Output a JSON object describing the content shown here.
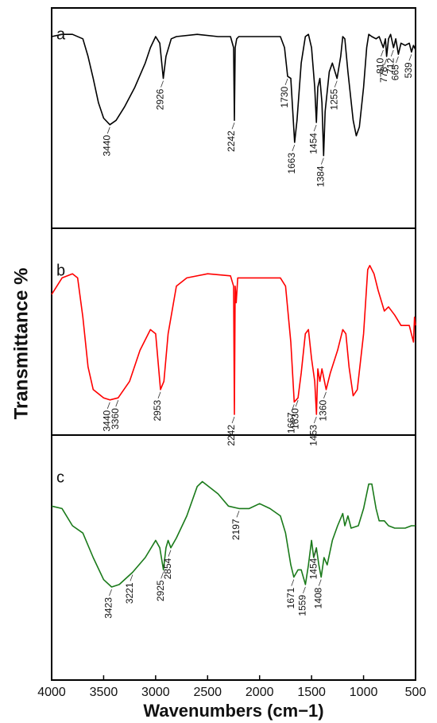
{
  "chart_data": {
    "type": "line",
    "xlabel": "Wavenumbers (cm−1)",
    "ylabel": "Transmittance %",
    "xlim": [
      4000,
      500
    ],
    "xticks": [
      4000,
      3500,
      3000,
      2500,
      2000,
      1500,
      1000,
      500
    ],
    "ylim": [
      0,
      100
    ],
    "series": [
      {
        "name": "a",
        "color": "#000000",
        "x": [
          4000,
          3900,
          3800,
          3700,
          3650,
          3600,
          3550,
          3500,
          3440,
          3380,
          3300,
          3200,
          3100,
          3050,
          3000,
          2960,
          2926,
          2900,
          2850,
          2800,
          2600,
          2400,
          2280,
          2250,
          2242,
          2235,
          2220,
          2200,
          2000,
          1800,
          1760,
          1730,
          1700,
          1663,
          1640,
          1600,
          1560,
          1530,
          1500,
          1470,
          1454,
          1440,
          1420,
          1400,
          1384,
          1370,
          1330,
          1300,
          1255,
          1220,
          1200,
          1180,
          1150,
          1100,
          1070,
          1040,
          1000,
          970,
          950,
          920,
          880,
          850,
          810,
          790,
          778,
          760,
          740,
          712,
          690,
          665,
          640,
          600,
          560,
          539,
          520,
          500
        ],
        "values": [
          87,
          88,
          88,
          86,
          78,
          68,
          57,
          50,
          47,
          49,
          55,
          64,
          75,
          82,
          87,
          84,
          68,
          78,
          86,
          87,
          88,
          87,
          87,
          82,
          49,
          82,
          86,
          87,
          87,
          87,
          82,
          69,
          68,
          39,
          49,
          75,
          87,
          88,
          82,
          64,
          48,
          64,
          68,
          57,
          33,
          53,
          71,
          75,
          68,
          78,
          87,
          86,
          71,
          49,
          42,
          46,
          64,
          82,
          88,
          87,
          86,
          87,
          82,
          86,
          78,
          86,
          88,
          82,
          86,
          79,
          84,
          83,
          84,
          80,
          83,
          81
        ],
        "peaks": [
          3440,
          2926,
          2242,
          1730,
          1663,
          1454,
          1384,
          1255,
          810,
          778,
          712,
          665,
          539
        ]
      },
      {
        "name": "b",
        "color": "#ff0000",
        "x": [
          4000,
          3900,
          3800,
          3750,
          3700,
          3650,
          3600,
          3500,
          3440,
          3360,
          3250,
          3150,
          3050,
          3000,
          2953,
          2920,
          2880,
          2800,
          2700,
          2500,
          2280,
          2250,
          2242,
          2235,
          2225,
          2210,
          2000,
          1800,
          1750,
          1700,
          1667,
          1630,
          1600,
          1560,
          1530,
          1500,
          1470,
          1453,
          1440,
          1420,
          1400,
          1360,
          1320,
          1250,
          1200,
          1170,
          1140,
          1100,
          1060,
          1000,
          960,
          940,
          900,
          860,
          800,
          760,
          700,
          640,
          560,
          520,
          510,
          500
        ],
        "values": [
          68,
          76,
          78,
          76,
          57,
          33,
          22,
          18,
          17,
          18,
          26,
          41,
          51,
          49,
          22,
          26,
          49,
          72,
          76,
          78,
          77,
          72,
          10,
          72,
          64,
          76,
          76,
          76,
          72,
          45,
          16,
          18,
          30,
          49,
          51,
          37,
          26,
          10,
          32,
          26,
          32,
          22,
          30,
          41,
          51,
          49,
          33,
          19,
          22,
          49,
          80,
          82,
          78,
          70,
          60,
          62,
          58,
          53,
          53,
          45,
          57,
          53
        ],
        "peaks": [
          3440,
          3360,
          2953,
          2242,
          1667,
          1630,
          1453,
          1360
        ]
      },
      {
        "name": "c",
        "color": "#1a7a1a",
        "x": [
          4000,
          3900,
          3800,
          3700,
          3600,
          3500,
          3423,
          3350,
          3221,
          3100,
          3000,
          2960,
          2925,
          2900,
          2880,
          2854,
          2800,
          2700,
          2600,
          2550,
          2400,
          2300,
          2197,
          2100,
          2000,
          1900,
          1800,
          1750,
          1700,
          1671,
          1630,
          1600,
          1559,
          1530,
          1500,
          1480,
          1454,
          1430,
          1408,
          1380,
          1350,
          1300,
          1250,
          1200,
          1180,
          1150,
          1120,
          1050,
          1000,
          950,
          920,
          880,
          850,
          800,
          760,
          700,
          600,
          540,
          500
        ],
        "values": [
          71,
          70,
          63,
          60,
          50,
          41,
          38,
          39,
          44,
          50,
          57,
          54,
          45,
          54,
          57,
          54,
          58,
          67,
          79,
          81,
          76,
          71,
          70,
          70,
          72,
          70,
          67,
          60,
          47,
          42,
          45,
          45,
          39,
          47,
          57,
          50,
          54,
          47,
          42,
          50,
          47,
          57,
          63,
          68,
          63,
          67,
          62,
          63,
          70,
          80,
          80,
          70,
          65,
          65,
          63,
          62,
          62,
          63,
          63
        ],
        "peaks": [
          3423,
          3221,
          2925,
          2854,
          2197,
          1671,
          1559,
          1454,
          1408
        ]
      }
    ]
  }
}
